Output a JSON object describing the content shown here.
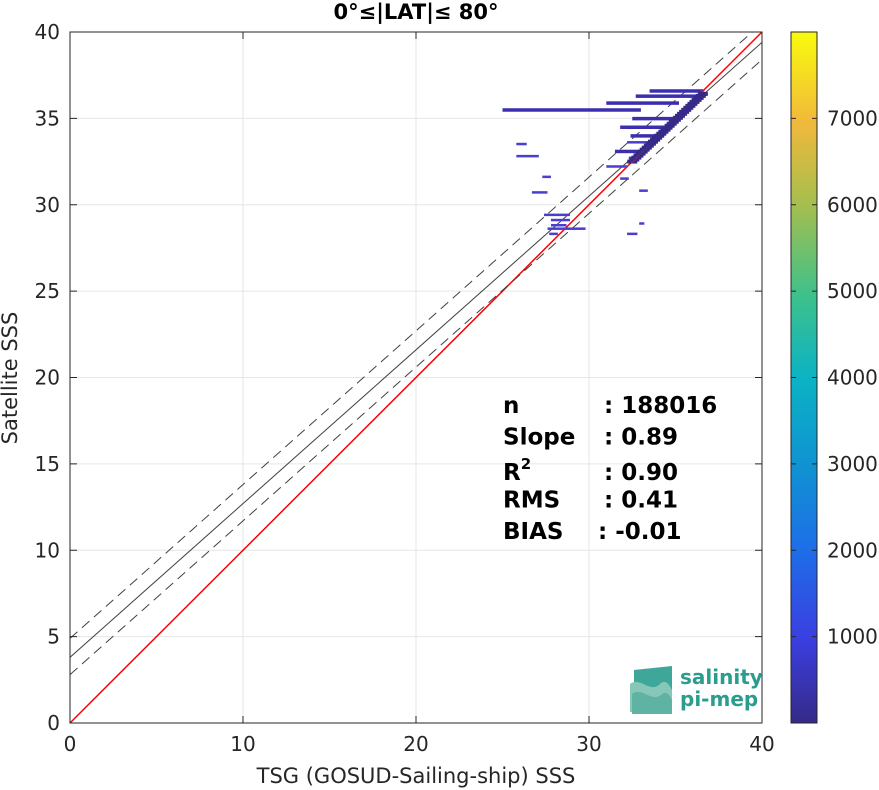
{
  "chart_data": {
    "type": "scatter",
    "title": "0°≤|LAT|≤ 80°",
    "xlabel": "TSG (GOSUD-Sailing-ship) SSS",
    "ylabel": "Satellite SSS",
    "xlim": [
      0,
      40
    ],
    "ylim": [
      0,
      40
    ],
    "x_ticks": [
      "0",
      "10",
      "20",
      "30",
      "40"
    ],
    "y_ticks": [
      "0",
      "5",
      "10",
      "15",
      "20",
      "25",
      "30",
      "35",
      "40"
    ],
    "grid": true,
    "colorbar": {
      "range": [
        0,
        8000
      ],
      "ticks": [
        "1000",
        "2000",
        "3000",
        "4000",
        "5000",
        "6000",
        "7000"
      ],
      "colormap": "parula"
    },
    "reference_lines": [
      {
        "name": "identity",
        "slope": 1.0,
        "intercept": 0.0,
        "color": "#ff0000",
        "style": "solid"
      },
      {
        "name": "regression",
        "slope": 0.89,
        "intercept": 3.8,
        "color": "#404040",
        "style": "solid"
      },
      {
        "name": "regression-upper",
        "slope": 0.89,
        "intercept": 4.9,
        "color": "#404040",
        "style": "dashed"
      },
      {
        "name": "regression-lower",
        "slope": 0.89,
        "intercept": 2.8,
        "color": "#404040",
        "style": "dashed"
      }
    ],
    "density_segments": [
      {
        "x1": 25.0,
        "x2": 33.0,
        "y": 35.5
      },
      {
        "x1": 31.0,
        "x2": 35.2,
        "y": 35.9
      },
      {
        "x1": 32.7,
        "x2": 36.3,
        "y": 36.3
      },
      {
        "x1": 33.5,
        "x2": 36.6,
        "y": 36.6
      },
      {
        "x1": 32.5,
        "x2": 35.2,
        "y": 35.0
      },
      {
        "x1": 31.8,
        "x2": 34.6,
        "y": 34.5
      },
      {
        "x1": 32.4,
        "x2": 34.0,
        "y": 34.0
      },
      {
        "x1": 32.2,
        "x2": 33.6,
        "y": 33.6
      },
      {
        "x1": 31.5,
        "x2": 33.2,
        "y": 33.1
      },
      {
        "x1": 32.3,
        "x2": 33.0,
        "y": 32.7
      },
      {
        "x1": 31.0,
        "x2": 32.2,
        "y": 32.2
      },
      {
        "x1": 31.8,
        "x2": 32.3,
        "y": 31.5
      },
      {
        "x1": 25.8,
        "x2": 26.4,
        "y": 33.5
      },
      {
        "x1": 25.8,
        "x2": 27.1,
        "y": 32.8
      },
      {
        "x1": 27.3,
        "x2": 27.8,
        "y": 31.6
      },
      {
        "x1": 26.7,
        "x2": 27.6,
        "y": 30.7
      },
      {
        "x1": 27.4,
        "x2": 28.9,
        "y": 29.4
      },
      {
        "x1": 27.8,
        "x2": 28.9,
        "y": 29.1
      },
      {
        "x1": 27.8,
        "x2": 28.7,
        "y": 28.8
      },
      {
        "x1": 27.6,
        "x2": 29.8,
        "y": 28.6
      },
      {
        "x1": 27.7,
        "x2": 28.2,
        "y": 28.3
      },
      {
        "x1": 32.9,
        "x2": 33.4,
        "y": 30.8
      },
      {
        "x1": 32.2,
        "x2": 32.8,
        "y": 28.3
      },
      {
        "x1": 32.9,
        "x2": 33.2,
        "y": 28.9
      }
    ],
    "stats": [
      {
        "label": "n",
        "value": ": 188016"
      },
      {
        "label": "Slope",
        "value": ": 0.89"
      },
      {
        "label": "R",
        "sup": "2",
        "value": ": 0.90"
      },
      {
        "label": "RMS",
        "value": ": 0.41"
      },
      {
        "label": "BIAS",
        "value": ": -0.01"
      }
    ]
  },
  "logo": {
    "line1": "salinity",
    "line2": "pi-mep"
  }
}
